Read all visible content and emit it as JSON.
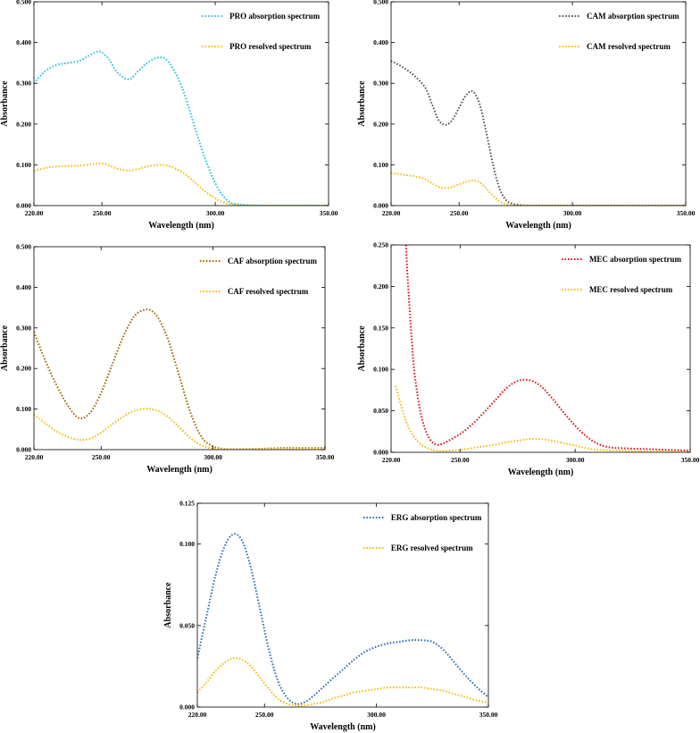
{
  "chart_data": [
    {
      "id": "pro",
      "type": "line",
      "xlabel": "Wavelength (nm)",
      "ylabel": "Absorbance",
      "xlim": [
        220,
        350
      ],
      "ylim": [
        0,
        0.5
      ],
      "xticks": [
        220,
        250,
        300,
        350
      ],
      "xtick_labels": [
        "220.00",
        "250.00",
        "300.00",
        "350.00"
      ],
      "yticks": [
        0,
        0.1,
        0.2,
        0.3,
        0.4,
        0.5
      ],
      "ytick_labels": [
        "0.000",
        "0.100",
        "0.200",
        "0.300",
        "0.400",
        "0.500"
      ],
      "legend_position": "top-right",
      "series": [
        {
          "name": "PRO absorption spectrum",
          "color": "#29c4de",
          "x": [
            220,
            225,
            230,
            235,
            240,
            245,
            249,
            253,
            257,
            262,
            266,
            270,
            274,
            278,
            282,
            286,
            290,
            294,
            298,
            302,
            306,
            310,
            315,
            320,
            330,
            340,
            350
          ],
          "y": [
            0.3,
            0.33,
            0.345,
            0.35,
            0.355,
            0.37,
            0.378,
            0.36,
            0.325,
            0.31,
            0.33,
            0.35,
            0.362,
            0.36,
            0.33,
            0.28,
            0.21,
            0.14,
            0.08,
            0.035,
            0.01,
            0.003,
            0.001,
            0.0,
            0.0,
            0.0,
            0.0
          ]
        },
        {
          "name": "PRO resolved spectrum",
          "color": "#f5bc12",
          "x": [
            220,
            225,
            230,
            235,
            240,
            245,
            249,
            253,
            257,
            262,
            266,
            270,
            274,
            278,
            282,
            286,
            290,
            294,
            298,
            302,
            306,
            310,
            315,
            320,
            330,
            340,
            350
          ],
          "y": [
            0.085,
            0.092,
            0.096,
            0.097,
            0.098,
            0.101,
            0.104,
            0.099,
            0.09,
            0.086,
            0.09,
            0.096,
            0.099,
            0.099,
            0.092,
            0.08,
            0.062,
            0.042,
            0.025,
            0.012,
            0.004,
            0.001,
            0.0,
            0.0,
            0.0,
            0.0,
            0.0
          ]
        }
      ]
    },
    {
      "id": "cam",
      "type": "line",
      "xlabel": "Wavelength (nm)",
      "ylabel": "Absorbance",
      "xlim": [
        220,
        350
      ],
      "ylim": [
        0,
        0.5
      ],
      "xticks": [
        220,
        250,
        300,
        350
      ],
      "xtick_labels": [
        "220.00",
        "250.00",
        "300.00",
        "350.00"
      ],
      "yticks": [
        0,
        0.1,
        0.2,
        0.3,
        0.4,
        0.5
      ],
      "ytick_labels": [
        "0.000",
        "0.100",
        "0.200",
        "0.300",
        "0.400",
        "0.500"
      ],
      "legend_position": "top-right",
      "series": [
        {
          "name": "CAM absorption spectrum",
          "color": "#555555",
          "x": [
            220,
            225,
            230,
            235,
            238,
            241,
            244,
            247,
            250,
            253,
            256,
            259,
            262,
            265,
            268,
            271,
            274,
            277,
            280,
            285,
            290,
            300,
            320,
            350
          ],
          "y": [
            0.355,
            0.34,
            0.32,
            0.29,
            0.25,
            0.21,
            0.198,
            0.21,
            0.24,
            0.27,
            0.28,
            0.25,
            0.18,
            0.1,
            0.04,
            0.012,
            0.004,
            0.001,
            0.0,
            0.0,
            0.0,
            0.0,
            0.0,
            0.0
          ]
        },
        {
          "name": "CAM resolved spectrum",
          "color": "#f5bc12",
          "x": [
            220,
            225,
            230,
            235,
            238,
            241,
            244,
            247,
            250,
            253,
            256,
            259,
            262,
            265,
            268,
            271,
            274,
            277,
            280,
            285,
            290,
            300,
            320,
            350
          ],
          "y": [
            0.08,
            0.076,
            0.072,
            0.065,
            0.055,
            0.046,
            0.043,
            0.046,
            0.052,
            0.058,
            0.062,
            0.057,
            0.042,
            0.024,
            0.01,
            0.003,
            0.001,
            0.0,
            0.0,
            0.0,
            0.0,
            0.0,
            0.0,
            0.0
          ]
        }
      ]
    },
    {
      "id": "caf",
      "type": "line",
      "xlabel": "Wavelength (nm)",
      "ylabel": "Absorbance",
      "xlim": [
        220,
        350
      ],
      "ylim": [
        0,
        0.5
      ],
      "xticks": [
        220,
        250,
        300,
        350
      ],
      "xtick_labels": [
        "220.00",
        "250.00",
        "300.00",
        "350.00"
      ],
      "yticks": [
        0,
        0.1,
        0.2,
        0.3,
        0.4,
        0.5
      ],
      "ytick_labels": [
        "0.000",
        "0.100",
        "0.200",
        "0.300",
        "0.400",
        "0.500"
      ],
      "legend_position": "top-right",
      "series": [
        {
          "name": "CAF absorption spectrum",
          "color": "#a16a06",
          "x": [
            220,
            225,
            230,
            235,
            240,
            245,
            250,
            255,
            260,
            265,
            270,
            273,
            276,
            280,
            285,
            290,
            295,
            300,
            305,
            310,
            320,
            330,
            340,
            350
          ],
          "y": [
            0.29,
            0.22,
            0.16,
            0.11,
            0.078,
            0.09,
            0.14,
            0.21,
            0.28,
            0.33,
            0.345,
            0.34,
            0.32,
            0.27,
            0.18,
            0.09,
            0.03,
            0.008,
            0.002,
            0.001,
            0.002,
            0.004,
            0.004,
            0.004
          ]
        },
        {
          "name": "CAF resolved spectrum",
          "color": "#f5bc12",
          "x": [
            220,
            225,
            230,
            235,
            240,
            245,
            250,
            255,
            260,
            265,
            270,
            273,
            276,
            280,
            285,
            290,
            295,
            300,
            305,
            310,
            320,
            330,
            340,
            350
          ],
          "y": [
            0.087,
            0.065,
            0.045,
            0.032,
            0.024,
            0.027,
            0.042,
            0.062,
            0.082,
            0.096,
            0.101,
            0.099,
            0.094,
            0.08,
            0.055,
            0.028,
            0.01,
            0.003,
            0.001,
            0.0,
            0.001,
            0.002,
            0.002,
            0.002
          ]
        }
      ]
    },
    {
      "id": "mec",
      "type": "line",
      "xlabel": "Wavelength (nm)",
      "ylabel": "Absorbance",
      "xlim": [
        220,
        350
      ],
      "ylim": [
        0,
        0.25
      ],
      "xticks": [
        220,
        250,
        300,
        350
      ],
      "xtick_labels": [
        "220.00",
        "250.00",
        "300.00",
        "350.00"
      ],
      "yticks": [
        0,
        0.05,
        0.1,
        0.15,
        0.2,
        0.25
      ],
      "ytick_labels": [
        "0.000",
        "0.050",
        "0.100",
        "0.150",
        "0.200",
        "0.250"
      ],
      "legend_position": "top-right",
      "series": [
        {
          "name": "MEC absorption spectrum",
          "color": "#e21818",
          "x": [
            226.5,
            227,
            228,
            229,
            230,
            232,
            234,
            236,
            238,
            240,
            242,
            245,
            250,
            255,
            260,
            265,
            270,
            275,
            280,
            285,
            290,
            295,
            300,
            305,
            310,
            315,
            320,
            330,
            340,
            350
          ],
          "y": [
            0.25,
            0.22,
            0.175,
            0.135,
            0.1,
            0.06,
            0.035,
            0.02,
            0.012,
            0.009,
            0.01,
            0.014,
            0.022,
            0.033,
            0.047,
            0.062,
            0.077,
            0.086,
            0.087,
            0.08,
            0.065,
            0.048,
            0.032,
            0.019,
            0.01,
            0.006,
            0.005,
            0.004,
            0.003,
            0.002
          ]
        },
        {
          "name": "MEC resolved spectrum",
          "color": "#f5bc12",
          "x": [
            222,
            225,
            228,
            232,
            236,
            240,
            245,
            250,
            255,
            260,
            265,
            270,
            275,
            280,
            285,
            290,
            295,
            300,
            305,
            310,
            320,
            330,
            340,
            350
          ],
          "y": [
            0.08,
            0.05,
            0.028,
            0.012,
            0.005,
            0.002,
            0.002,
            0.003,
            0.005,
            0.007,
            0.009,
            0.012,
            0.014,
            0.016,
            0.016,
            0.014,
            0.011,
            0.008,
            0.005,
            0.003,
            0.002,
            0.001,
            0.001,
            0.0
          ]
        }
      ]
    },
    {
      "id": "erg",
      "type": "line",
      "xlabel": "Wavelength (nm)",
      "ylabel": "Absorbance",
      "xlim": [
        220,
        350
      ],
      "ylim": [
        0,
        0.125
      ],
      "xticks": [
        220,
        250,
        300,
        350
      ],
      "xtick_labels": [
        "220.00",
        "250.00",
        "300.00",
        "350.00"
      ],
      "yticks": [
        0,
        0.05,
        0.1,
        0.125
      ],
      "ytick_labels": [
        "0.000",
        "0.050",
        "0.100",
        "0.125"
      ],
      "legend_position": "top-right",
      "series": [
        {
          "name": "ERG absorption spectrum",
          "color": "#2e6fb7",
          "x": [
            220,
            224,
            228,
            232,
            236,
            240,
            244,
            248,
            252,
            256,
            260,
            264,
            268,
            272,
            276,
            280,
            285,
            290,
            295,
            300,
            305,
            310,
            315,
            320,
            325,
            330,
            335,
            340,
            345,
            350
          ],
          "y": [
            0.03,
            0.055,
            0.08,
            0.098,
            0.106,
            0.102,
            0.085,
            0.06,
            0.035,
            0.016,
            0.006,
            0.002,
            0.003,
            0.007,
            0.012,
            0.017,
            0.023,
            0.029,
            0.034,
            0.037,
            0.039,
            0.04,
            0.041,
            0.041,
            0.04,
            0.035,
            0.027,
            0.019,
            0.012,
            0.006
          ]
        },
        {
          "name": "ERG resolved spectrum",
          "color": "#f5bc12",
          "x": [
            220,
            224,
            228,
            232,
            236,
            240,
            244,
            248,
            252,
            256,
            260,
            264,
            268,
            272,
            276,
            280,
            285,
            290,
            295,
            300,
            305,
            310,
            315,
            320,
            325,
            330,
            335,
            340,
            345,
            350
          ],
          "y": [
            0.009,
            0.015,
            0.022,
            0.027,
            0.03,
            0.029,
            0.025,
            0.018,
            0.011,
            0.005,
            0.002,
            0.001,
            0.001,
            0.002,
            0.003,
            0.005,
            0.007,
            0.009,
            0.01,
            0.011,
            0.012,
            0.012,
            0.012,
            0.012,
            0.011,
            0.01,
            0.008,
            0.006,
            0.004,
            0.003
          ]
        }
      ]
    }
  ]
}
